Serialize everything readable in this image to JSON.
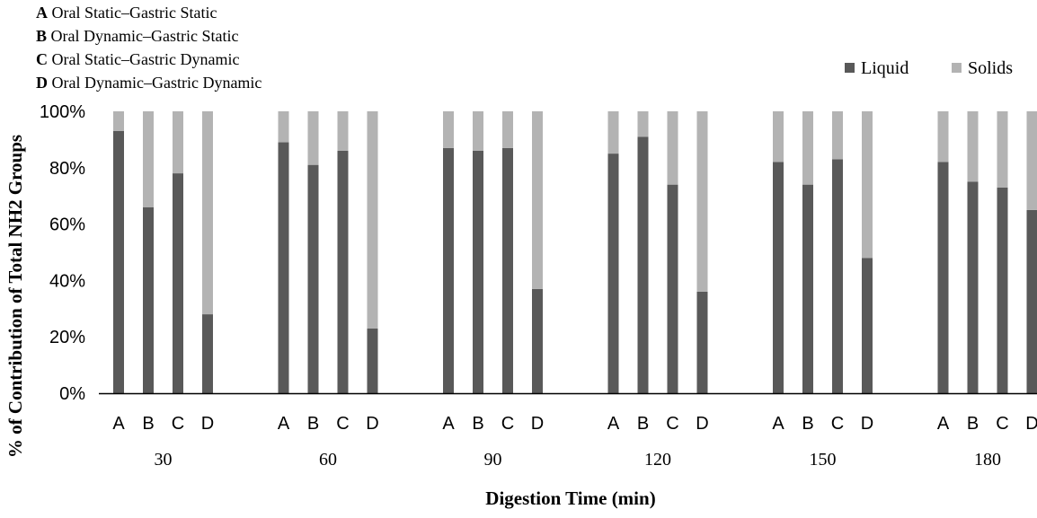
{
  "chart_data": {
    "type": "bar",
    "stacked": true,
    "percent": true,
    "title": "",
    "xlabel": "Digestion Time (min)",
    "ylabel": "% of Contribution of Total NH2 Groups",
    "ylim": [
      0,
      100
    ],
    "yticks": [
      "0%",
      "20%",
      "40%",
      "60%",
      "80%",
      "100%"
    ],
    "groups": [
      "30",
      "60",
      "90",
      "120",
      "150",
      "180"
    ],
    "categories": [
      "A",
      "B",
      "C",
      "D"
    ],
    "category_legend": [
      {
        "key": "A",
        "text": "Oral Static–Gastric Static"
      },
      {
        "key": "B",
        "text": "Oral Dynamic–Gastric Static"
      },
      {
        "key": "C",
        "text": "Oral Static–Gastric Dynamic"
      },
      {
        "key": "D",
        "text": "Oral Dynamic–Gastric Dynamic"
      }
    ],
    "legend_position": "top-right",
    "grid": false,
    "series": [
      {
        "name": "Liquid",
        "color": "#595959",
        "values": [
          [
            93,
            66,
            78,
            28
          ],
          [
            89,
            81,
            86,
            23
          ],
          [
            87,
            86,
            87,
            37
          ],
          [
            85,
            91,
            74,
            36
          ],
          [
            82,
            74,
            83,
            48
          ],
          [
            82,
            75,
            73,
            65
          ]
        ]
      },
      {
        "name": "Solids",
        "color": "#b3b3b3",
        "values": [
          [
            7,
            34,
            22,
            72
          ],
          [
            11,
            19,
            14,
            77
          ],
          [
            13,
            14,
            13,
            63
          ],
          [
            15,
            9,
            26,
            64
          ],
          [
            18,
            26,
            17,
            52
          ],
          [
            18,
            25,
            27,
            35
          ]
        ]
      }
    ]
  }
}
